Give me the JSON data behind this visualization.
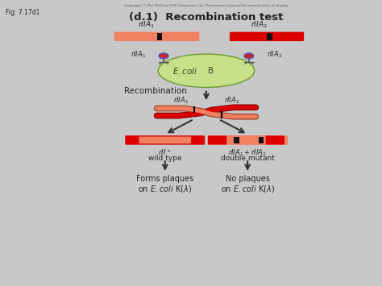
{
  "title": "(d.1)  Recombination test",
  "copyright": "Copyright © The McGraw-Hill Companies, Inc. Permission required for reproduction or display.",
  "fig_label": "Fig: 7.17d1",
  "outer_bg": "#c8c8c8",
  "inner_bg": "#ffffff",
  "bar_salmon": "#F08060",
  "bar_red": "#DD0000",
  "bar_black": "#111111",
  "ecoli_green_light": "#c8e08a",
  "ecoli_green_dark": "#6a9a30",
  "text_color": "#222222",
  "arrow_color": "#333333",
  "phage_red": "#cc2222",
  "phage_blue": "#4466cc"
}
